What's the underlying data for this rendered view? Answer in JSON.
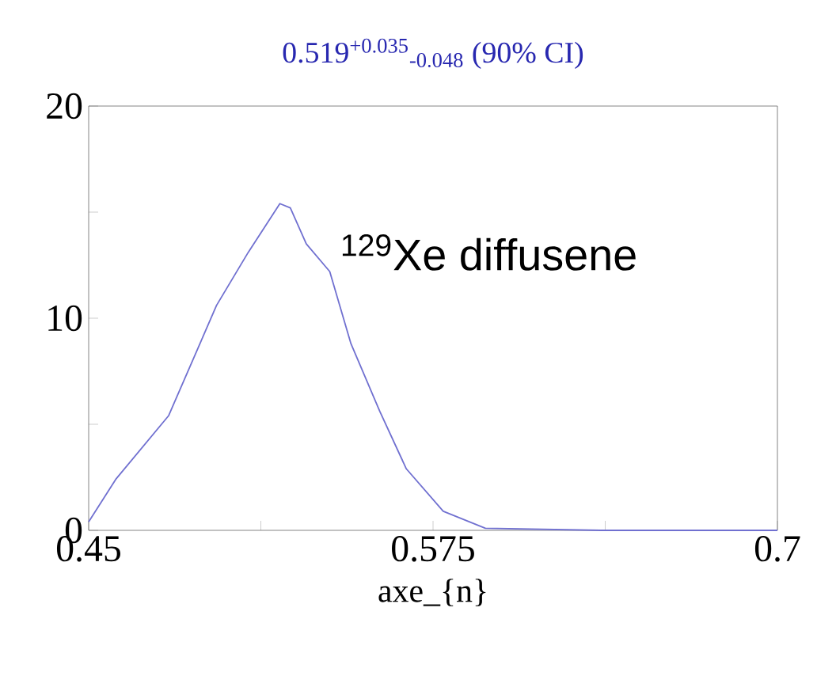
{
  "chart_data": {
    "type": "line",
    "title": "0.519$^{+0.035}$$_{-0.048}$ (90% CI)",
    "xlabel": "axe_{n}",
    "annotations": [
      "$^{129}$Xe diffusene"
    ],
    "x": [
      0.45,
      0.4598,
      0.479,
      0.4964,
      0.5079,
      0.5194,
      0.5232,
      0.529,
      0.5375,
      0.5452,
      0.5557,
      0.5653,
      0.5787,
      0.594,
      0.636,
      0.7
    ],
    "series": [
      {
        "color": "#7070d0",
        "values": [
          0.4,
          2.4,
          5.4,
          10.6,
          13.1,
          15.4,
          15.2,
          13.5,
          12.2,
          8.8,
          5.6,
          2.9,
          0.9,
          0.1,
          0.0,
          0.0
        ]
      }
    ],
    "xlim": [
      0.45,
      0.7
    ],
    "ylim": [
      0,
      20
    ],
    "xticks": [
      0.45,
      {
        "value": 0.5125,
        "label": null
      },
      0.575,
      {
        "value": 0.6375,
        "label": null
      },
      0.7
    ],
    "yticks": [
      0,
      {
        "value": 5,
        "label": null
      },
      10,
      {
        "value": 15,
        "label": null
      },
      20
    ],
    "marker": "none",
    "line_style": "solid"
  }
}
